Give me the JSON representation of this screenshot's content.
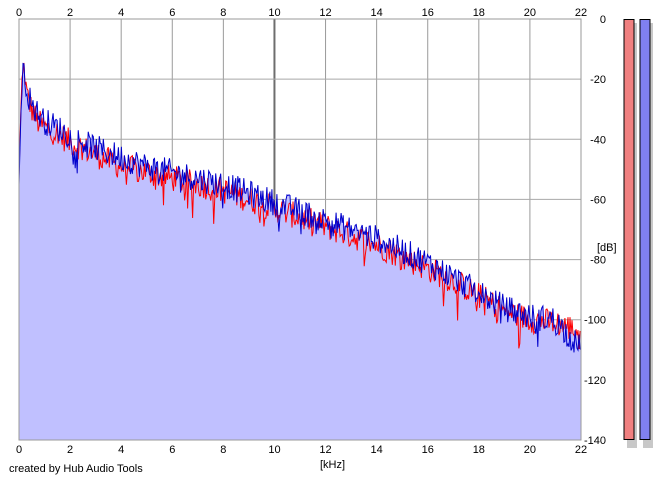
{
  "chart_data": {
    "type": "area",
    "xlabel": "[kHz]",
    "ylabel": "[dB]",
    "xlim": [
      0,
      22
    ],
    "ylim": [
      -140,
      0
    ],
    "x_ticks": [
      0,
      2,
      4,
      6,
      8,
      10,
      12,
      14,
      16,
      18,
      20,
      22
    ],
    "y_ticks": [
      0,
      -20,
      -40,
      -60,
      -80,
      -100,
      -120,
      -140
    ],
    "grid": true,
    "series": [
      {
        "color": "#ff0000",
        "x": [
          0.0,
          0.1,
          0.2,
          0.3,
          0.5,
          0.7,
          1.0,
          1.5,
          2.0,
          3.0,
          4.0,
          5.0,
          6.0,
          7.0,
          8.0,
          9.0,
          10.0,
          11.0,
          12.0,
          13.0,
          14.0,
          15.0,
          16.0,
          17.0,
          18.0,
          19.0,
          20.0,
          21.0,
          22.0
        ],
        "y": [
          -52,
          -22,
          -16,
          -25,
          -30,
          -34,
          -36,
          -38,
          -41,
          -45,
          -49,
          -51,
          -53,
          -55,
          -57,
          -60,
          -63,
          -66,
          -69,
          -72,
          -75,
          -79,
          -83,
          -87,
          -92,
          -97,
          -100,
          -101,
          -104
        ]
      },
      {
        "color": "#0000cc",
        "x": [
          0.0,
          0.1,
          0.2,
          0.3,
          0.5,
          0.7,
          1.0,
          1.5,
          2.0,
          3.0,
          4.0,
          5.0,
          6.0,
          7.0,
          8.0,
          9.0,
          10.0,
          11.0,
          12.0,
          13.0,
          14.0,
          15.0,
          16.0,
          17.0,
          18.0,
          19.0,
          20.0,
          21.0,
          22.0
        ],
        "y": [
          -55,
          -24,
          -15,
          -24,
          -28,
          -31,
          -34,
          -36,
          -39,
          -43,
          -46,
          -49,
          -51,
          -53,
          -55,
          -58,
          -61,
          -64,
          -67,
          -70,
          -73,
          -77,
          -81,
          -86,
          -91,
          -96,
          -99,
          -100,
          -110
        ]
      }
    ],
    "area_fill": "#c0c0ff",
    "level_meters": [
      {
        "color": "#f08080"
      },
      {
        "color": "#8080f0"
      }
    ]
  },
  "footer": {
    "credit": "created by Hub Audio Tools"
  }
}
